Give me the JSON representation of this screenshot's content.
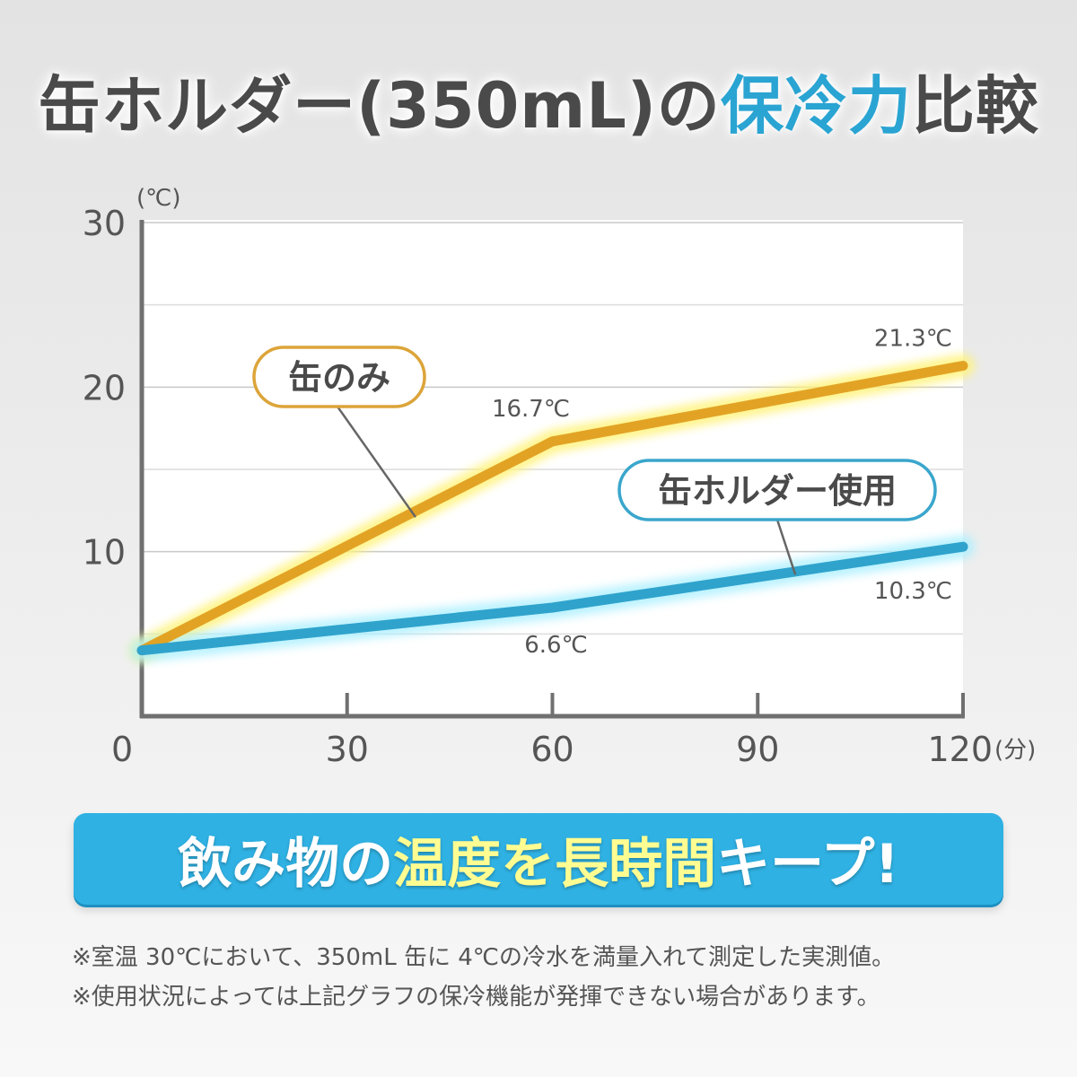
{
  "title": {
    "part1": "缶ホルダー(350mL)の",
    "part2": "保冷力",
    "part3": "比較"
  },
  "chart_data": {
    "type": "line",
    "x": [
      0,
      60,
      120
    ],
    "series": [
      {
        "name": "缶のみ",
        "values": [
          4,
          16.7,
          21.3
        ],
        "color": "#e2a325"
      },
      {
        "name": "缶ホルダー使用",
        "values": [
          4,
          6.6,
          10.3
        ],
        "color": "#2fa3cc"
      }
    ],
    "data_labels": [
      {
        "series": 0,
        "x": 60,
        "text": "16.7℃"
      },
      {
        "series": 0,
        "x": 120,
        "text": "21.3℃"
      },
      {
        "series": 1,
        "x": 60,
        "text": "6.6℃"
      },
      {
        "series": 1,
        "x": 120,
        "text": "10.3℃"
      }
    ],
    "xlim": [
      0,
      120
    ],
    "ylim": [
      0,
      30
    ],
    "x_ticks": [
      "0",
      "30",
      "60",
      "90",
      "120"
    ],
    "y_ticks": [
      "10",
      "20",
      "30"
    ],
    "xlabel": "(分)",
    "ylabel": "(℃)",
    "grid": true
  },
  "banner": {
    "part1": "飲み物の",
    "part2": "温度を長時間",
    "part3": "キープ!"
  },
  "notes": [
    "※室温 30℃において、350mL 缶に 4℃の冷水を満量入れて測定した実測値。",
    "※使用状況によっては上記グラフの保冷機能が発揮できない場合があります。"
  ]
}
